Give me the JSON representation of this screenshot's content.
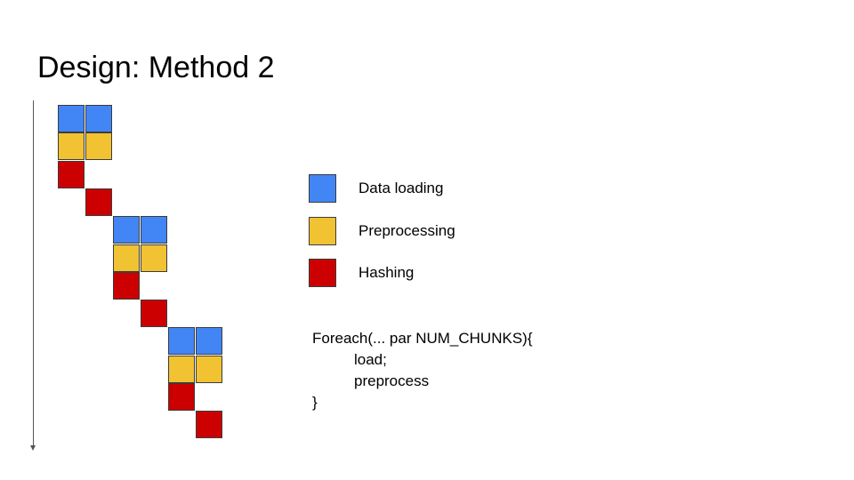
{
  "slide": {
    "title": "Design: Method 2"
  },
  "colors": {
    "data_loading": "#4285f4",
    "preprocessing": "#f1c232",
    "hashing": "#cc0000"
  },
  "legend": [
    {
      "label": "Data loading",
      "color_key": "data_loading"
    },
    {
      "label": "Preprocessing",
      "color_key": "preprocessing"
    },
    {
      "label": "Hashing",
      "color_key": "hashing"
    }
  ],
  "code": {
    "lines": [
      "Foreach(... par NUM_CHUNKS){",
      "load;",
      "preprocess",
      "}"
    ]
  },
  "timeline": {
    "chunks": 3,
    "stages_per_chunk": [
      "data_loading",
      "preprocessing",
      "hashing",
      "hashing"
    ],
    "parallel_lanes": 2
  }
}
